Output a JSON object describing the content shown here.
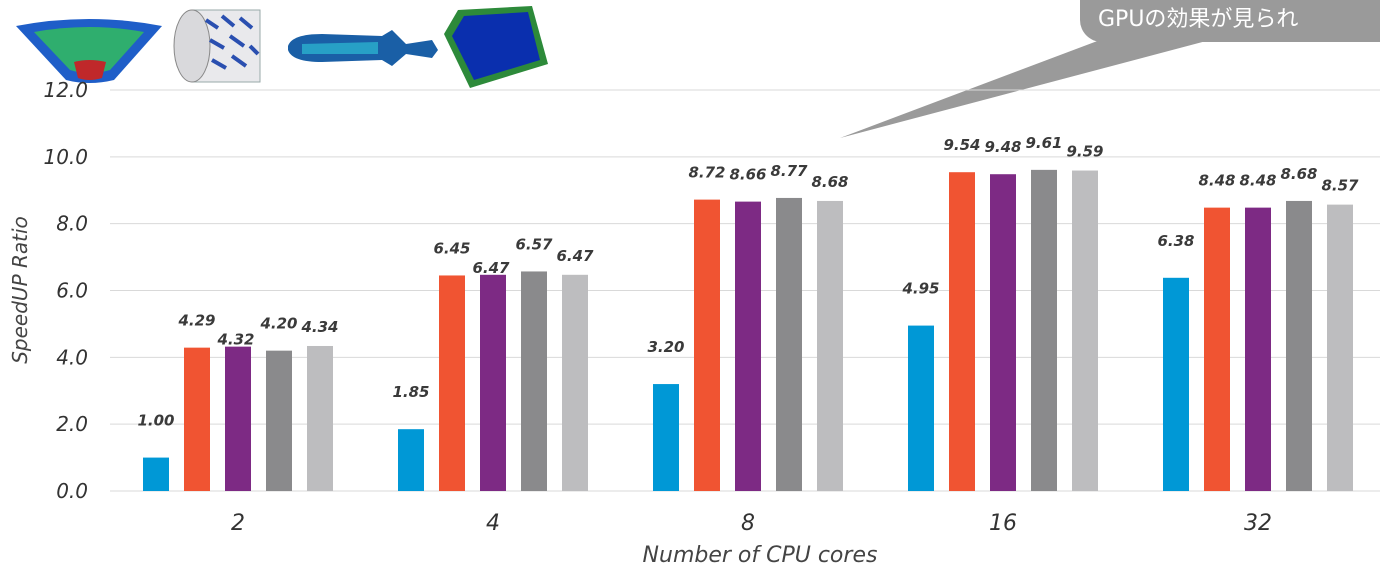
{
  "callout": {
    "text": "GPUの効果が見られ"
  },
  "chart_data": {
    "type": "bar",
    "xlabel": "Number of CPU cores",
    "ylabel": "SpeedUP Ratio",
    "ylim": [
      0,
      12
    ],
    "yticks": [
      "0.0",
      "2.0",
      "4.0",
      "6.0",
      "8.0",
      "10.0",
      "12.0"
    ],
    "categories": [
      "2",
      "4",
      "8",
      "16",
      "32"
    ],
    "grid": true,
    "series": [
      {
        "color": "#0098d6",
        "values": [
          1.0,
          1.85,
          3.2,
          4.95,
          6.38
        ],
        "labels": [
          "1.00",
          "1.85",
          "3.20",
          "4.95",
          "6.38"
        ]
      },
      {
        "color": "#f05432",
        "values": [
          4.29,
          6.45,
          8.72,
          9.54,
          8.48
        ],
        "labels": [
          "4.29",
          "6.45",
          "8.72",
          "9.54",
          "8.48"
        ]
      },
      {
        "color": "#7d2a84",
        "values": [
          4.32,
          6.47,
          8.66,
          9.48,
          8.48
        ],
        "labels": [
          "4.32",
          "6.47",
          "8.66",
          "9.48",
          "8.48"
        ]
      },
      {
        "color": "#8a8a8c",
        "values": [
          4.2,
          6.57,
          8.77,
          9.61,
          8.68
        ],
        "labels": [
          "4.20",
          "6.57",
          "8.77",
          "9.61",
          "8.68"
        ]
      },
      {
        "color": "#bdbdbf",
        "values": [
          4.34,
          6.47,
          8.68,
          9.59,
          8.57
        ],
        "labels": [
          "4.34",
          "6.47",
          "8.68",
          "9.59",
          "8.57"
        ]
      }
    ],
    "highlight_label_color": "#e3001b"
  }
}
